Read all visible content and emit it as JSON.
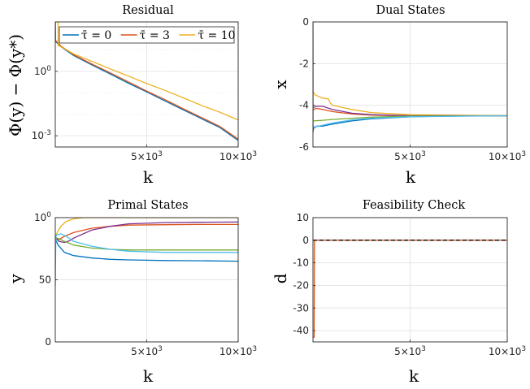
{
  "chart_data": [
    {
      "type": "line",
      "title": "Residual",
      "xlabel": "k",
      "ylabel": "Φ(y) − Φ(y*)",
      "xlim": [
        0,
        10000
      ],
      "yscale": "log",
      "ylim": [
        0.0003,
        200
      ],
      "x_ticks": [
        {
          "v": 5000,
          "label": "5×10³"
        },
        {
          "v": 10000,
          "label": "10×10³"
        }
      ],
      "y_ticks": [
        {
          "v": 1,
          "label": "10⁰"
        },
        {
          "v": 0.001,
          "label": "10⁻³"
        }
      ],
      "grid": true,
      "legend": {
        "position": "top",
        "entries": [
          "τ̄ = 0",
          "τ̄ = 3",
          "τ̄ = 10"
        ]
      },
      "series": [
        {
          "name": "τ̄ = 0",
          "color": "#0072BD",
          "x": [
            0,
            10,
            300,
            1000,
            2000,
            3000,
            4000,
            5000,
            6000,
            7000,
            8000,
            9000,
            10000
          ],
          "y": [
            200,
            25,
            14,
            5.5,
            2.0,
            0.75,
            0.28,
            0.11,
            0.042,
            0.016,
            0.0062,
            0.0024,
            0.0006
          ]
        },
        {
          "name": "τ̄ = 3",
          "color": "#D95319",
          "x": [
            0,
            10,
            300,
            1000,
            2000,
            3000,
            4000,
            5000,
            6000,
            7000,
            8000,
            9000,
            10000
          ],
          "y": [
            200,
            28,
            15,
            6.0,
            2.2,
            0.85,
            0.32,
            0.12,
            0.048,
            0.018,
            0.007,
            0.0027,
            0.0007
          ]
        },
        {
          "name": "τ̄ = 10",
          "color": "#EDB120",
          "x": [
            0,
            150,
            160,
            300,
            1000,
            2000,
            3000,
            4000,
            5000,
            6000,
            7000,
            8000,
            9000,
            10000
          ],
          "y": [
            200,
            200,
            16,
            14,
            6.5,
            2.9,
            1.3,
            0.6,
            0.27,
            0.13,
            0.058,
            0.026,
            0.0125,
            0.0055
          ]
        }
      ]
    },
    {
      "type": "line",
      "title": "Dual States",
      "xlabel": "k",
      "ylabel": "x",
      "xlim": [
        0,
        10000
      ],
      "ylim": [
        -6,
        0
      ],
      "x_ticks": [
        {
          "v": 5000,
          "label": "5×10³"
        },
        {
          "v": 10000,
          "label": "10×10³"
        }
      ],
      "y_ticks": [
        {
          "v": 0,
          "label": "0"
        },
        {
          "v": -2,
          "label": "-2"
        },
        {
          "v": -4,
          "label": "-4"
        },
        {
          "v": -6,
          "label": "-6"
        }
      ],
      "grid": true,
      "series": [
        {
          "color": "#0072BD",
          "x": [
            0,
            30,
            200,
            500,
            1000,
            2000,
            3000,
            4000,
            5000,
            7000,
            10000
          ],
          "y": [
            -5.3,
            -5.1,
            -5.0,
            -5.0,
            -4.9,
            -4.75,
            -4.65,
            -4.6,
            -4.55,
            -4.52,
            -4.5
          ]
        },
        {
          "color": "#D95319",
          "x": [
            0,
            30,
            200,
            500,
            1000,
            2000,
            3000,
            4000,
            5000,
            7000,
            10000
          ],
          "y": [
            -4.3,
            -4.2,
            -4.15,
            -4.2,
            -4.3,
            -4.42,
            -4.47,
            -4.49,
            -4.5,
            -4.5,
            -4.5
          ]
        },
        {
          "color": "#EDB120",
          "x": [
            0,
            10,
            20,
            100,
            500,
            800,
            900,
            1000,
            2000,
            3000,
            5000,
            10000
          ],
          "y": [
            0,
            -3.3,
            -3.35,
            -3.5,
            -3.65,
            -3.7,
            -3.9,
            -4.0,
            -4.2,
            -4.35,
            -4.45,
            -4.5
          ]
        },
        {
          "color": "#7E2F8E",
          "x": [
            0,
            30,
            200,
            500,
            1000,
            2000,
            3000,
            5000,
            10000
          ],
          "y": [
            -4.2,
            -4.1,
            -4.05,
            -4.05,
            -4.2,
            -4.38,
            -4.45,
            -4.5,
            -4.5
          ]
        },
        {
          "color": "#77AC30",
          "x": [
            0,
            30,
            500,
            1000,
            2000,
            3000,
            5000,
            10000
          ],
          "y": [
            -4.8,
            -4.75,
            -4.72,
            -4.68,
            -4.62,
            -4.57,
            -4.52,
            -4.5
          ]
        },
        {
          "color": "#4DBEEE",
          "x": [
            0,
            5,
            10,
            30,
            300,
            1000,
            2000,
            3000,
            5000,
            10000
          ],
          "y": [
            0,
            -1.0,
            -4.9,
            -5.05,
            -5.0,
            -4.85,
            -4.7,
            -4.62,
            -4.55,
            -4.5
          ]
        }
      ]
    },
    {
      "type": "line",
      "title": "Primal States",
      "xlabel": "k",
      "ylabel": "y",
      "xlim": [
        0,
        10000
      ],
      "ylim": [
        0,
        100
      ],
      "x_ticks": [
        {
          "v": 5000,
          "label": "5×10³"
        },
        {
          "v": 10000,
          "label": "10×10³"
        }
      ],
      "y_ticks": [
        {
          "v": 0,
          "label": "0"
        },
        {
          "v": 50,
          "label": "50"
        },
        {
          "v": 100,
          "label": "100"
        }
      ],
      "grid": true,
      "series": [
        {
          "color": "#0072BD",
          "x": [
            0,
            150,
            500,
            1000,
            2000,
            3000,
            4000,
            6000,
            8000,
            10000
          ],
          "y": [
            83,
            78,
            72,
            69.5,
            67.5,
            66.5,
            66,
            65.5,
            65.3,
            65
          ]
        },
        {
          "color": "#D95319",
          "x": [
            0,
            150,
            500,
            1000,
            2000,
            3000,
            4000,
            6000,
            8000,
            10000
          ],
          "y": [
            84,
            82,
            85,
            88,
            91.5,
            93,
            94,
            94.3,
            94.5,
            94.5
          ]
        },
        {
          "color": "#EDB120",
          "x": [
            0,
            100,
            300,
            600,
            1000,
            1500,
            2000,
            4000,
            6000,
            10000
          ],
          "y": [
            84,
            88,
            93,
            97,
            99,
            100,
            100,
            100,
            100,
            100
          ]
        },
        {
          "color": "#7E2F8E",
          "x": [
            0,
            200,
            500,
            800,
            1000,
            2000,
            3000,
            4000,
            6000,
            8000,
            10000
          ],
          "y": [
            84,
            81,
            80,
            81.5,
            83.5,
            90,
            93,
            95,
            96,
            96.3,
            96.5
          ]
        },
        {
          "color": "#77AC30",
          "x": [
            0,
            200,
            500,
            1000,
            2000,
            3000,
            4000,
            6000,
            10000
          ],
          "y": [
            84,
            83,
            81,
            78,
            75.5,
            74.5,
            74,
            74,
            74
          ]
        },
        {
          "color": "#4DBEEE",
          "x": [
            0,
            30,
            60,
            300,
            600,
            1000,
            2000,
            3000,
            4000,
            6000,
            10000
          ],
          "y": [
            45,
            84,
            86,
            87,
            85,
            81,
            77,
            74.5,
            73,
            72,
            72
          ]
        }
      ]
    },
    {
      "type": "line",
      "title": "Feasibility Check",
      "xlabel": "k",
      "ylabel": "d",
      "xlim": [
        0,
        10000
      ],
      "ylim": [
        -45,
        10
      ],
      "x_ticks": [
        {
          "v": 5000,
          "label": "5×10³"
        },
        {
          "v": 10000,
          "label": "10×10³"
        }
      ],
      "y_ticks": [
        {
          "v": 10,
          "label": "10"
        },
        {
          "v": 0,
          "label": "0"
        },
        {
          "v": -10,
          "label": "-10"
        },
        {
          "v": -20,
          "label": "-20"
        },
        {
          "v": -30,
          "label": "-30"
        },
        {
          "v": -40,
          "label": "-40"
        }
      ],
      "grid": true,
      "series": [
        {
          "color": "#D95319",
          "style": "solid",
          "x": [
            0,
            60,
            80,
            10000
          ],
          "y": [
            -43,
            -43,
            0,
            0
          ]
        },
        {
          "color": "#000000",
          "style": "dashed",
          "x": [
            0,
            10000
          ],
          "y": [
            0,
            0
          ]
        }
      ]
    }
  ]
}
